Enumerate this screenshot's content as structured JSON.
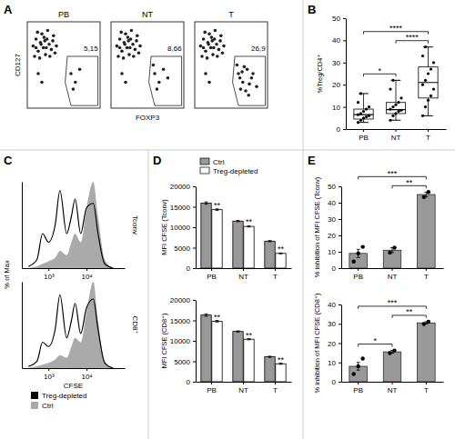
{
  "chart_data": [
    {
      "panel": "A",
      "type": "scatter",
      "title": "PB",
      "y_label": "CD127",
      "xlim": [
        0,
        100
      ],
      "ylim": [
        0,
        100
      ],
      "tick_labels": false,
      "color": "#222222",
      "x": [
        8,
        12,
        15,
        18,
        20,
        22,
        25,
        27,
        30,
        33,
        10,
        14,
        17,
        24,
        28,
        35,
        38,
        40,
        19,
        23,
        31,
        12,
        36,
        26,
        15,
        20,
        60,
        66,
        72,
        63
      ],
      "y": [
        72,
        80,
        66,
        76,
        86,
        70,
        62,
        80,
        74,
        68,
        60,
        88,
        58,
        78,
        90,
        78,
        64,
        72,
        74,
        82,
        60,
        70,
        84,
        70,
        40,
        30,
        40,
        30,
        45,
        22
      ],
      "annotation": {
        "value": 5.15,
        "label": "5,15"
      }
    },
    {
      "type": "scatter",
      "title": "NT",
      "x_label": "FOXP3",
      "xlim": [
        0,
        100
      ],
      "ylim": [
        0,
        100
      ],
      "tick_labels": false,
      "color": "#222222",
      "x": [
        8,
        12,
        15,
        18,
        20,
        22,
        25,
        27,
        30,
        33,
        10,
        14,
        17,
        24,
        28,
        35,
        38,
        40,
        19,
        23,
        31,
        12,
        36,
        26,
        15,
        20,
        60,
        66,
        72,
        63,
        78,
        58
      ],
      "y": [
        72,
        80,
        66,
        76,
        86,
        70,
        62,
        80,
        74,
        68,
        60,
        88,
        58,
        78,
        90,
        78,
        64,
        72,
        74,
        82,
        60,
        70,
        84,
        70,
        40,
        30,
        40,
        30,
        45,
        22,
        35,
        50
      ],
      "annotation": {
        "value": 8.66,
        "label": "8,66"
      }
    },
    {
      "type": "scatter",
      "title": "T",
      "xlim": [
        0,
        100
      ],
      "ylim": [
        0,
        100
      ],
      "tick_labels": false,
      "color": "#222222",
      "x": [
        8,
        12,
        15,
        18,
        20,
        22,
        25,
        27,
        30,
        33,
        10,
        14,
        17,
        24,
        28,
        35,
        38,
        40,
        19,
        23,
        31,
        12,
        36,
        26,
        15,
        20,
        60,
        66,
        72,
        63,
        78,
        58,
        70,
        75,
        62,
        68,
        80,
        85,
        74,
        65
      ],
      "y": [
        72,
        80,
        66,
        76,
        86,
        70,
        62,
        80,
        74,
        68,
        60,
        88,
        58,
        78,
        90,
        78,
        64,
        72,
        74,
        82,
        60,
        70,
        84,
        70,
        40,
        30,
        40,
        30,
        45,
        22,
        35,
        50,
        20,
        28,
        35,
        48,
        40,
        25,
        15,
        42
      ],
      "annotation": {
        "value": 26.9,
        "label": "26,9"
      }
    },
    {
      "panel": "B",
      "type": "box",
      "categories": [
        "PB",
        "NT",
        "T"
      ],
      "y_label": "%Treg/CD4⁺",
      "ylim": [
        0,
        50
      ],
      "yticks": [
        0,
        10,
        20,
        30,
        40,
        50
      ],
      "color": "#000000",
      "min": [
        3,
        4,
        6
      ],
      "q1": [
        4.5,
        7,
        14
      ],
      "median": [
        6.5,
        8.8,
        21
      ],
      "q3": [
        9,
        12,
        28
      ],
      "max": [
        16,
        22,
        37
      ],
      "points": [
        [
          3,
          4,
          5,
          5.5,
          6,
          6.5,
          7,
          8,
          9,
          10,
          12,
          16
        ],
        [
          4,
          6,
          7,
          8,
          8.5,
          9,
          10,
          11,
          12,
          14,
          18,
          22
        ],
        [
          6,
          10,
          13,
          15,
          18,
          20,
          22,
          25,
          27,
          30,
          33,
          37
        ]
      ],
      "comparisons": [
        {
          "categories": [
            "PB",
            "NT"
          ],
          "text": "*"
        },
        {
          "categories": [
            "PB",
            "T"
          ],
          "text": "****"
        },
        {
          "categories": [
            "NT",
            "T"
          ],
          "text": "****"
        }
      ]
    },
    {
      "panel": "C",
      "type": "area",
      "title": "Tconv",
      "y_label": "% of Max",
      "log": "x",
      "xlim": [
        200,
        100000
      ],
      "ylim": [
        0,
        100
      ],
      "xticks": [
        {
          "value": 1000,
          "label": "10³"
        },
        {
          "value": 10000,
          "label": "10⁴"
        }
      ],
      "tick_labels": "x",
      "x": [
        300,
        500,
        700,
        1000,
        1500,
        2000,
        3000,
        4000,
        5000,
        7000,
        10000,
        15000,
        20000,
        30000,
        50000
      ],
      "series": [
        {
          "color": "#000000",
          "type": "line",
          "values": [
            2,
            10,
            40,
            30,
            50,
            90,
            40,
            60,
            80,
            40,
            70,
            75,
            40,
            5,
            0
          ]
        },
        {
          "color": "#aaaaaa",
          "type": "area",
          "values": [
            0,
            2,
            5,
            8,
            12,
            20,
            15,
            30,
            40,
            30,
            70,
            100,
            60,
            10,
            0
          ]
        }
      ]
    },
    {
      "type": "area",
      "title": "CD8⁺",
      "x_label": "CFSE",
      "log": "x",
      "xlim": [
        200,
        100000
      ],
      "ylim": [
        0,
        100
      ],
      "xticks": [
        {
          "value": 1000,
          "label": "10³"
        },
        {
          "value": 10000,
          "label": "10⁴"
        }
      ],
      "tick_labels": "x",
      "legend": "bottom",
      "x": [
        300,
        500,
        700,
        1000,
        1500,
        2000,
        3000,
        4000,
        5000,
        7000,
        10000,
        15000,
        20000,
        30000,
        50000
      ],
      "series": [
        {
          "name": "Treg-depleted",
          "color": "#000000",
          "type": "line",
          "values": [
            2,
            8,
            30,
            25,
            45,
            85,
            35,
            55,
            75,
            40,
            70,
            80,
            45,
            6,
            0
          ]
        },
        {
          "name": "Ctrl",
          "color": "#aaaaaa",
          "type": "area",
          "values": [
            0,
            2,
            4,
            6,
            10,
            15,
            12,
            25,
            35,
            30,
            65,
            100,
            55,
            8,
            0
          ]
        }
      ]
    },
    {
      "panel": "D",
      "type": "bar",
      "categories": [
        "PB",
        "NT",
        "T"
      ],
      "y_label": "MFI CFSE (Tconv)",
      "ylim": [
        0,
        20000
      ],
      "yticks": [
        0,
        5000,
        10000,
        15000,
        20000
      ],
      "legend": "top",
      "series": [
        {
          "name": "Ctrl",
          "color": "#999999",
          "values": [
            15900,
            11500,
            6600
          ],
          "errors": [
            300,
            150,
            150
          ]
        },
        {
          "name": "Treg-depleted",
          "color": "#ffffff",
          "values": [
            14300,
            10200,
            3600
          ],
          "errors": [
            200,
            150,
            100
          ],
          "annotations": [
            "**",
            "**",
            "**"
          ]
        }
      ]
    },
    {
      "type": "bar",
      "categories": [
        "PB",
        "NT",
        "T"
      ],
      "y_label": "MFI CFSE (CD8⁺)",
      "ylim": [
        0,
        20000
      ],
      "yticks": [
        0,
        5000,
        10000,
        15000,
        20000
      ],
      "series": [
        {
          "color": "#999999",
          "values": [
            16300,
            12300,
            6100
          ],
          "errors": [
            300,
            150,
            150
          ]
        },
        {
          "color": "#ffffff",
          "values": [
            14800,
            10400,
            4400
          ],
          "errors": [
            200,
            150,
            150
          ],
          "annotations": [
            "**",
            "**",
            "**"
          ]
        }
      ]
    },
    {
      "panel": "E",
      "type": "bar",
      "categories": [
        "PB",
        "NT",
        "T"
      ],
      "y_label": "% inhibition of MFI CFSE (Tconv)",
      "ylim": [
        0,
        50
      ],
      "yticks": [
        0,
        10,
        20,
        30,
        40,
        50
      ],
      "color": "#999999",
      "values": [
        9,
        11,
        45
      ],
      "errors": [
        2.5,
        1.5,
        1.5
      ],
      "points": [
        [
          4,
          9,
          13
        ],
        [
          9.5,
          12.5
        ],
        [
          43.5,
          46.5
        ]
      ],
      "comparisons": [
        {
          "categories": [
            "PB",
            "T"
          ],
          "text": "***"
        },
        {
          "categories": [
            "NT",
            "T"
          ],
          "text": "**"
        }
      ]
    },
    {
      "type": "bar",
      "categories": [
        "PB",
        "NT",
        "T"
      ],
      "y_label": "% inhibition of MFI CFSE (CD8⁺)",
      "ylim": [
        0,
        40
      ],
      "yticks": [
        0,
        10,
        20,
        30,
        40
      ],
      "color": "#999999",
      "values": [
        8,
        15.5,
        30.5
      ],
      "errors": [
        2,
        0.7,
        0.6
      ],
      "points": [
        [
          4,
          8,
          12
        ],
        [
          14.8,
          16.2
        ],
        [
          29.9,
          31.1
        ]
      ],
      "comparisons": [
        {
          "categories": [
            "PB",
            "NT"
          ],
          "text": "*"
        },
        {
          "categories": [
            "PB",
            "T"
          ],
          "text": "***"
        },
        {
          "categories": [
            "NT",
            "T"
          ],
          "text": "**"
        }
      ]
    }
  ]
}
